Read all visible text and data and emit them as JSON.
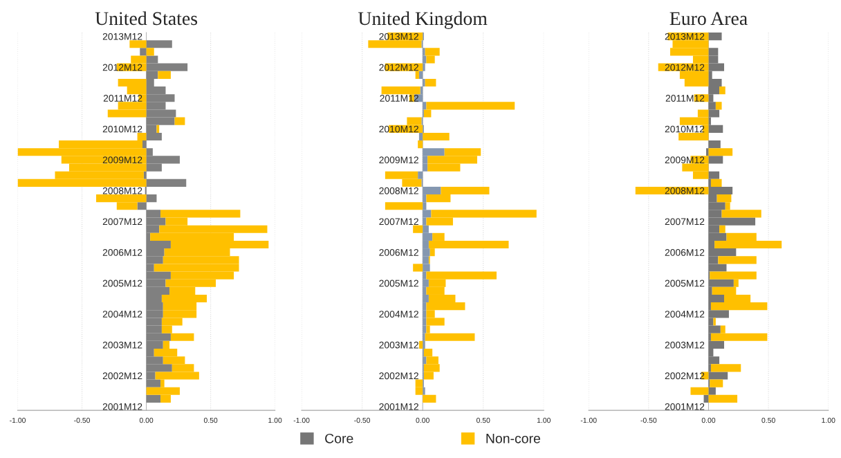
{
  "chart_data": [
    {
      "type": "bar",
      "orientation": "horizontal",
      "stacked": true,
      "title": "United States",
      "categories": [
        "2013M12",
        null,
        null,
        null,
        "2012M12",
        null,
        null,
        null,
        "2011M12",
        null,
        null,
        null,
        "2010M12",
        null,
        null,
        null,
        "2009M12",
        null,
        null,
        null,
        "2008M12",
        null,
        null,
        null,
        "2007M12",
        null,
        null,
        null,
        "2006M12",
        null,
        null,
        null,
        "2005M12",
        null,
        null,
        null,
        "2004M12",
        null,
        null,
        null,
        "2003M12",
        null,
        null,
        null,
        "2002M12",
        null,
        null,
        null,
        "2001M12"
      ],
      "series": [
        {
          "color": "#808080",
          "values": [
            null,
            0.2,
            -0.05,
            0.09,
            0.32,
            0.09,
            0.06,
            0.15,
            0.22,
            0.15,
            0.23,
            0.22,
            0.08,
            0.12,
            -0.03,
            0.05,
            0.26,
            0.12,
            -0.02,
            0.31,
            -0.01,
            0.08,
            -0.07,
            0.11,
            0.15,
            0.1,
            0.03,
            0.19,
            0.14,
            0.13,
            0.06,
            0.19,
            0.15,
            0.18,
            0.12,
            0.13,
            0.13,
            0.12,
            0.12,
            0.19,
            0.13,
            0.06,
            0.13,
            0.2,
            0.07,
            0.11,
            0.0,
            0.11,
            null
          ]
        },
        {
          "color": "#ffc000",
          "values": [
            null,
            -0.13,
            0.06,
            -0.12,
            -0.23,
            0.1,
            -0.22,
            -0.15,
            -0.06,
            -0.22,
            -0.3,
            0.08,
            0.02,
            -0.07,
            -0.65,
            -1.0,
            -0.66,
            -0.6,
            -0.69,
            -1.0,
            0.0,
            -0.39,
            -0.16,
            0.62,
            0.17,
            0.84,
            0.65,
            0.76,
            0.51,
            0.59,
            0.66,
            0.49,
            0.39,
            0.2,
            0.35,
            0.26,
            0.26,
            0.16,
            0.08,
            0.18,
            0.05,
            0.18,
            0.17,
            0.17,
            0.34,
            0.03,
            0.26,
            0.08,
            null
          ]
        }
      ],
      "xlim": [
        -1,
        1
      ],
      "xticks": [
        {
          "value": -1,
          "label": "-1.00"
        },
        {
          "value": -0.5,
          "label": "-0.50"
        },
        {
          "value": 0,
          "label": "0.00"
        },
        {
          "value": 0.5,
          "label": "0.50"
        },
        {
          "value": 1,
          "label": "1.00"
        }
      ],
      "grid": "x"
    },
    {
      "type": "bar",
      "orientation": "horizontal",
      "stacked": true,
      "title": "United Kingdom",
      "categories": [
        "2013M12",
        null,
        null,
        null,
        "2012M12",
        null,
        null,
        null,
        "2011M12",
        null,
        null,
        null,
        "2010M12",
        null,
        null,
        null,
        "2009M12",
        null,
        null,
        null,
        "2008M12",
        null,
        null,
        null,
        "2007M12",
        null,
        null,
        null,
        "2006M12",
        null,
        null,
        null,
        "2005M12",
        null,
        null,
        null,
        "2004M12",
        null,
        null,
        null,
        "2003M12",
        null,
        null,
        null,
        "2002M12",
        null,
        null,
        null,
        "2001M12"
      ],
      "series": [
        {
          "color": "#8497b0",
          "values": [
            0.01,
            -0.01,
            0.02,
            0.03,
            0.02,
            -0.03,
            0.02,
            -0.02,
            -0.07,
            0.03,
            0.01,
            -0.01,
            0.01,
            -0.03,
            0.0,
            0.18,
            0.04,
            0.04,
            -0.04,
            -0.01,
            0.15,
            0.03,
            0.03,
            0.07,
            0.03,
            0.05,
            0.08,
            0.05,
            0.06,
            0.05,
            0.06,
            0.03,
            0.05,
            0.03,
            0.05,
            0.03,
            0.03,
            0.03,
            0.03,
            0.02,
            0.02,
            0.01,
            0.03,
            0.01,
            0.01,
            0.01,
            0.02,
            0.0,
            null
          ]
        },
        {
          "color": "#ffc000",
          "values": [
            -0.29,
            -0.44,
            0.12,
            0.07,
            -0.31,
            -0.03,
            0.09,
            -0.32,
            -0.04,
            0.73,
            0.06,
            -0.12,
            -0.28,
            0.22,
            -0.04,
            0.3,
            0.41,
            0.27,
            -0.27,
            -0.16,
            0.4,
            0.2,
            -0.31,
            0.87,
            0.22,
            -0.08,
            0.1,
            0.66,
            0.04,
            0.01,
            -0.08,
            0.58,
            0.14,
            0.15,
            0.22,
            0.32,
            0.07,
            0.15,
            0.03,
            0.41,
            -0.03,
            0.07,
            0.1,
            0.13,
            0.08,
            -0.06,
            -0.06,
            0.11,
            null
          ]
        }
      ],
      "xlim": [
        -1,
        1
      ],
      "xticks": [
        {
          "value": -1,
          "label": "-1.00"
        },
        {
          "value": -0.5,
          "label": "-0.50"
        },
        {
          "value": 0,
          "label": "0.00"
        },
        {
          "value": 0.5,
          "label": "0.50"
        },
        {
          "value": 1,
          "label": "1.00"
        }
      ],
      "grid": "x"
    },
    {
      "type": "bar",
      "orientation": "horizontal",
      "stacked": true,
      "title": "Euro Area",
      "legend": "bottom",
      "categories": [
        "2013M12",
        null,
        null,
        null,
        "2012M12",
        null,
        null,
        null,
        "2011M12",
        null,
        null,
        null,
        "2010M12",
        null,
        null,
        null,
        "2009M12",
        null,
        null,
        null,
        "2008M12",
        null,
        null,
        null,
        "2007M12",
        null,
        null,
        null,
        "2006M12",
        null,
        null,
        null,
        "2005M12",
        null,
        null,
        null,
        "2004M12",
        null,
        null,
        null,
        "2003M12",
        null,
        null,
        null,
        "2002M12",
        null,
        null,
        null,
        "2001M12"
      ],
      "series": [
        {
          "name": "Core",
          "color": "#767676",
          "values": [
            0.11,
            0.0,
            0.08,
            0.08,
            0.13,
            0.03,
            0.11,
            0.09,
            0.04,
            0.06,
            0.09,
            0.02,
            0.12,
            0.0,
            0.1,
            -0.02,
            0.12,
            0.0,
            0.09,
            0.02,
            0.2,
            0.07,
            0.14,
            0.11,
            0.39,
            0.09,
            0.15,
            0.05,
            0.23,
            0.08,
            0.15,
            0.01,
            0.21,
            0.03,
            0.13,
            0.02,
            0.17,
            0.04,
            0.1,
            0.02,
            0.13,
            0.04,
            0.09,
            0.02,
            0.16,
            0.01,
            0.06,
            -0.04,
            null
          ]
        },
        {
          "name": "Non-core",
          "color": "#ffc000",
          "values": [
            -0.34,
            -0.3,
            -0.32,
            -0.13,
            -0.42,
            -0.24,
            -0.2,
            0.05,
            -0.12,
            0.05,
            -0.09,
            -0.24,
            -0.05,
            -0.25,
            0.0,
            0.2,
            -0.15,
            -0.22,
            -0.13,
            0.09,
            -0.61,
            0.12,
            0.04,
            0.33,
            0.0,
            0.05,
            0.25,
            0.56,
            0.0,
            0.32,
            0.0,
            0.39,
            0.04,
            0.2,
            0.22,
            0.47,
            0.0,
            0.02,
            0.04,
            0.47,
            0.0,
            0.0,
            0.0,
            0.25,
            -0.06,
            0.11,
            -0.15,
            0.24,
            null
          ]
        }
      ],
      "xlim": [
        -1,
        1
      ],
      "xticks": [
        {
          "value": -1,
          "label": "-1.00"
        },
        {
          "value": -0.5,
          "label": "-0.50"
        },
        {
          "value": 0,
          "label": "0.00"
        },
        {
          "value": 0.5,
          "label": "0.50"
        },
        {
          "value": 1,
          "label": "1.00"
        }
      ],
      "grid": "x"
    }
  ]
}
